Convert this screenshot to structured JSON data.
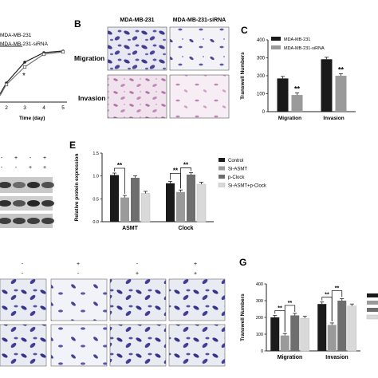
{
  "panels": {
    "A": {
      "legend": [
        "MDA-MB-231",
        "MDA-MB-231-siRNA"
      ],
      "xlabel": "Time (day)",
      "xticks": [
        "2",
        "3",
        "4",
        "5"
      ],
      "annotation": "*"
    },
    "B": {
      "letter": "B",
      "col_headers": [
        "MDA-MB-231",
        "MDA-MB-231-siRNA"
      ],
      "row_labels": [
        "Migration",
        "Invasion"
      ]
    },
    "C": {
      "letter": "C"
    },
    "D": {
      "signs_row1": [
        "-",
        "+",
        "-",
        "+"
      ],
      "signs_row2": [
        "-",
        "-",
        "+",
        "+"
      ]
    },
    "E": {
      "letter": "E"
    },
    "F": {
      "signs_row1": [
        "-",
        "+",
        "-",
        "+"
      ],
      "signs_row2": [
        "-",
        "-",
        "+",
        "+"
      ]
    },
    "G": {
      "letter": "G"
    }
  },
  "chart_data": [
    {
      "id": "C",
      "type": "bar",
      "categories": [
        "Migration",
        "Invasion"
      ],
      "series": [
        {
          "name": "MDA-MB-231",
          "values": [
            185,
            292
          ],
          "color": "#1a1a1a"
        },
        {
          "name": "MDA-MB-231-siRNA",
          "values": [
            93,
            200
          ],
          "color": "#9a9a9a"
        }
      ],
      "ylabel": "Transwell Numbers",
      "ylim": [
        0,
        400
      ],
      "yticks": [
        "0",
        "100",
        "200",
        "300",
        "400"
      ],
      "significance": [
        "**",
        "**"
      ]
    },
    {
      "id": "E",
      "type": "bar",
      "categories": [
        "ASMT",
        "Clock"
      ],
      "series": [
        {
          "name": "Control",
          "values": [
            1.02,
            0.84
          ],
          "color": "#1a1a1a"
        },
        {
          "name": "Si-ASMT",
          "values": [
            0.53,
            0.65
          ],
          "color": "#9a9a9a"
        },
        {
          "name": "p-Clock",
          "values": [
            0.96,
            1.03
          ],
          "color": "#6e6e6e"
        },
        {
          "name": "Si-ASMT+p-Clock",
          "values": [
            0.62,
            0.82
          ],
          "color": "#d9d9d9"
        }
      ],
      "ylabel": "Relative protein expression",
      "ylim": [
        0,
        1.5
      ],
      "yticks": [
        "0.0",
        "0.5",
        "1.0",
        "1.5"
      ],
      "significance": [
        "**",
        "**",
        "**"
      ]
    },
    {
      "id": "G",
      "type": "bar",
      "categories": [
        "Migration",
        "Invasion"
      ],
      "series": [
        {
          "values": [
            200,
            280
          ],
          "color": "#1a1a1a"
        },
        {
          "values": [
            92,
            155
          ],
          "color": "#9a9a9a"
        },
        {
          "values": [
            212,
            300
          ],
          "color": "#6e6e6e"
        },
        {
          "values": [
            195,
            268
          ],
          "color": "#d9d9d9"
        }
      ],
      "ylabel": "Transwell Numbers",
      "ylim": [
        0,
        400
      ],
      "yticks": [
        "0",
        "100",
        "200",
        "300",
        "400"
      ],
      "significance": [
        "**",
        "**",
        "**",
        "**"
      ]
    }
  ]
}
